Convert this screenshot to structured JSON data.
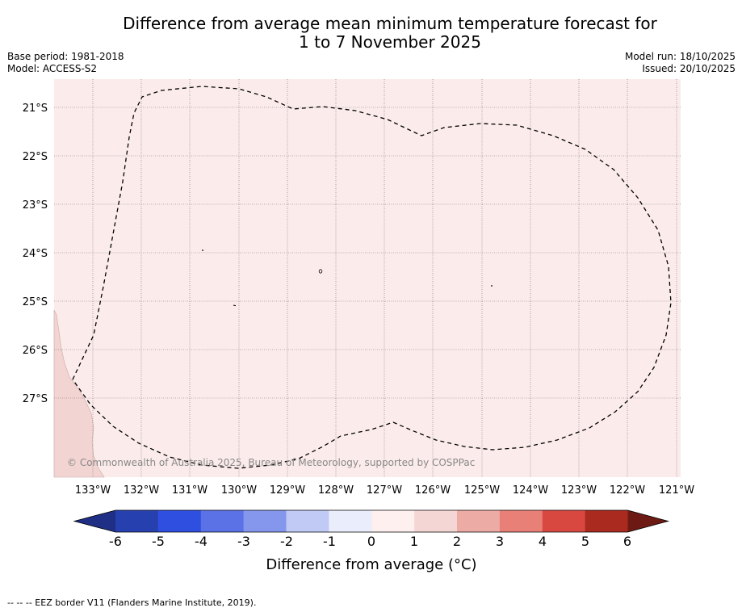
{
  "header": {
    "title_line1": "Difference from average mean minimum temperature forecast for",
    "title_line2": "1 to 7 November 2025",
    "base_period": "Base period: 1981-2018",
    "model": "Model: ACCESS-S2",
    "model_run": "Model run: 18/10/2025",
    "issued": "Issued: 20/10/2025"
  },
  "map": {
    "copyright": "© Commonwealth of Australia 2025, Bureau of Meteorology, supported by COSPPac",
    "lat_labels": [
      "21°S",
      "22°S",
      "23°S",
      "24°S",
      "25°S",
      "26°S",
      "27°S"
    ],
    "lon_labels": [
      "133°W",
      "132°W",
      "131°W",
      "130°W",
      "129°W",
      "128°W",
      "127°W",
      "126°W",
      "125°W",
      "124°W",
      "123°W",
      "122°W",
      "121°W"
    ],
    "colors": {
      "ocean_fill": "#fbeceb",
      "land_fill": "#f2d4d2",
      "grid": "#777777"
    }
  },
  "colorbar": {
    "label": "Difference from average (°C)",
    "ticks": [
      "-6",
      "-5",
      "-4",
      "-3",
      "-2",
      "-1",
      "0",
      "1",
      "2",
      "3",
      "4",
      "5",
      "6"
    ],
    "colors": [
      "#1f2f85",
      "#2740b0",
      "#2f4fe0",
      "#5a72e6",
      "#8497ed",
      "#c1c9f5",
      "#eaedfb",
      "#fdf0ee",
      "#f4d7d4",
      "#ecaba4",
      "#e98078",
      "#d94840",
      "#aa2a20",
      "#6e1a14"
    ]
  },
  "footer": {
    "legend": "--  --  -- EEZ border V11 (Flanders Marine Institute, 2019)."
  }
}
